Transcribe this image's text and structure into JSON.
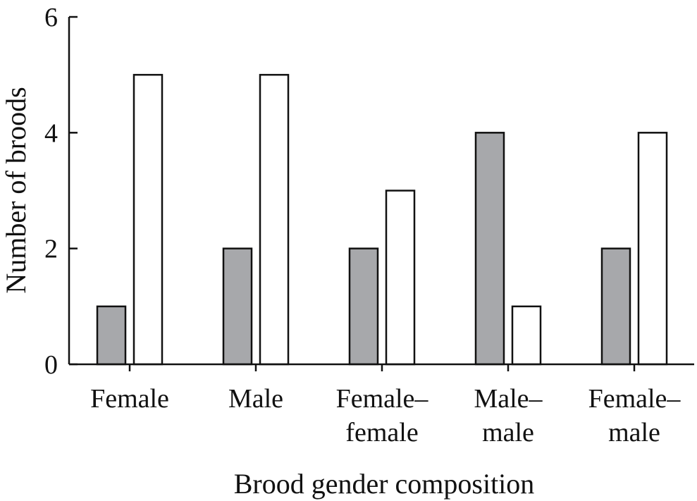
{
  "chart_data": {
    "type": "bar",
    "title": "",
    "xlabel": "Brood gender composition",
    "ylabel": "Number of broods",
    "ylim": [
      0,
      6
    ],
    "yticks": [
      "0",
      "2",
      "4",
      "6"
    ],
    "categories": [
      [
        "Female"
      ],
      [
        "Male"
      ],
      [
        "Female–",
        "female"
      ],
      [
        "Male–",
        "male"
      ],
      [
        "Female–",
        "male"
      ]
    ],
    "series": [
      {
        "values": [
          1,
          2,
          2,
          4,
          2
        ],
        "color": "#a7a8ab"
      },
      {
        "values": [
          5,
          5,
          3,
          1,
          4
        ],
        "color": "#ffffff"
      }
    ],
    "grid": false,
    "legend": "none"
  }
}
